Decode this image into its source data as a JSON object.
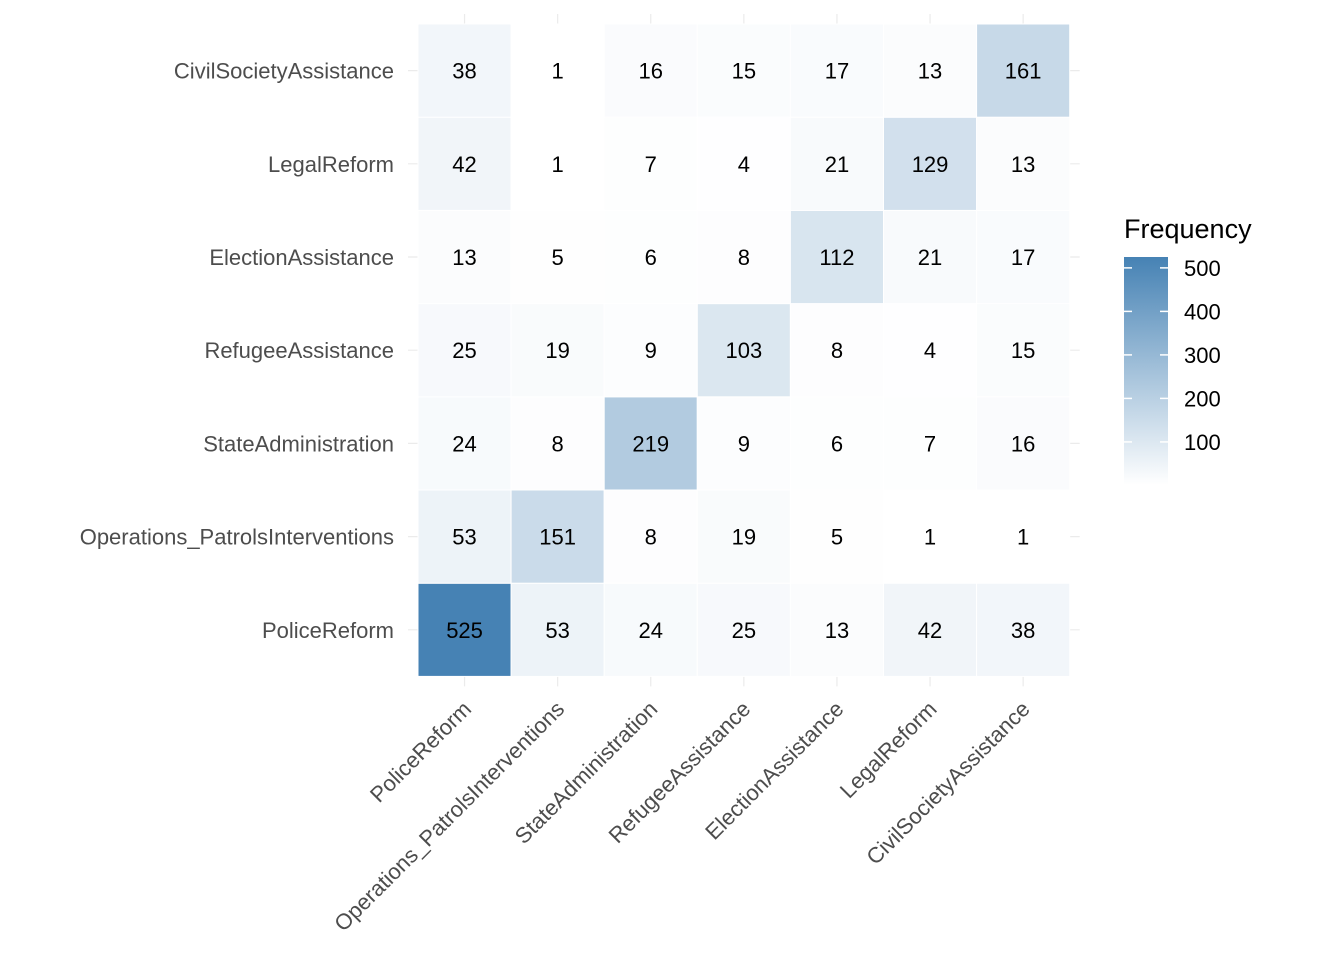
{
  "chart_data": {
    "type": "heatmap",
    "x_categories": [
      "PoliceReform",
      "Operations_PatrolsInterventions",
      "StateAdministration",
      "RefugeeAssistance",
      "ElectionAssistance",
      "LegalReform",
      "CivilSocietyAssistance"
    ],
    "y_categories": [
      "PoliceReform",
      "Operations_PatrolsInterventions",
      "StateAdministration",
      "RefugeeAssistance",
      "ElectionAssistance",
      "LegalReform",
      "CivilSocietyAssistance"
    ],
    "values": [
      [
        525,
        53,
        24,
        25,
        13,
        42,
        38
      ],
      [
        53,
        151,
        8,
        19,
        5,
        1,
        1
      ],
      [
        24,
        8,
        219,
        9,
        6,
        7,
        16
      ],
      [
        25,
        19,
        9,
        103,
        8,
        4,
        15
      ],
      [
        13,
        5,
        6,
        8,
        112,
        21,
        17
      ],
      [
        42,
        1,
        7,
        4,
        21,
        129,
        13
      ],
      [
        38,
        1,
        16,
        15,
        17,
        13,
        161
      ]
    ],
    "color_low": "#ffffff",
    "color_high": "#4682b4",
    "value_range": [
      1,
      525
    ],
    "legend": {
      "title": "Frequency",
      "breaks": [
        100,
        200,
        300,
        400,
        500
      ],
      "position": "right"
    },
    "xlabel": "",
    "ylabel": ""
  }
}
